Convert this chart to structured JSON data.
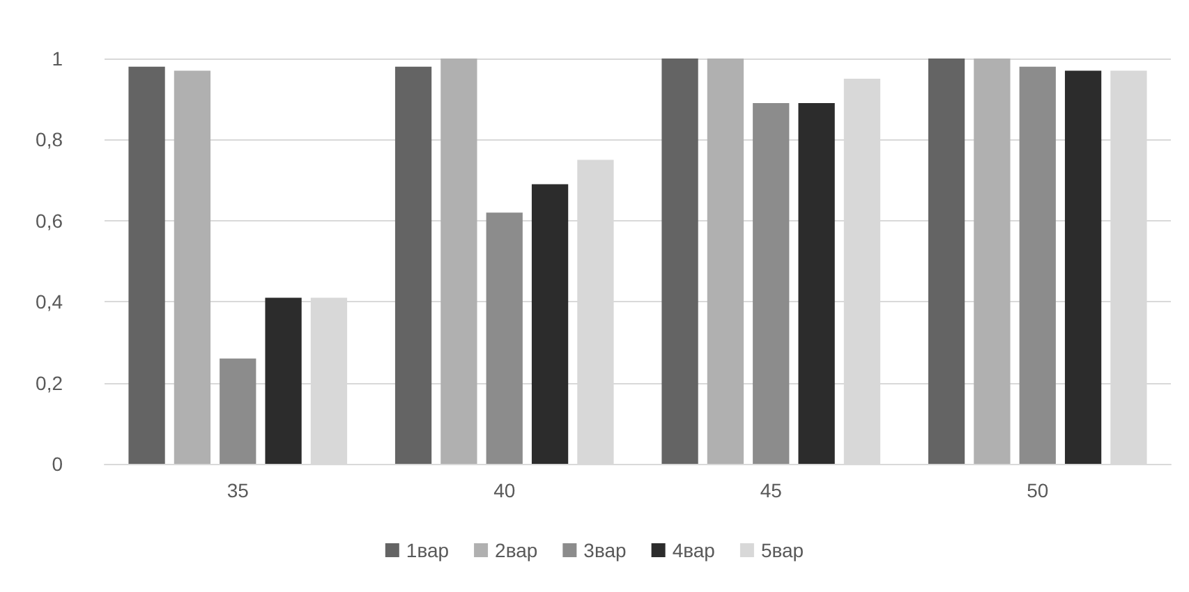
{
  "chart_data": {
    "type": "bar",
    "categories": [
      "35",
      "40",
      "45",
      "50"
    ],
    "series": [
      {
        "name": "1вар",
        "color": "#646464",
        "values": [
          0.98,
          0.98,
          1.0,
          1.0
        ]
      },
      {
        "name": "2вар",
        "color": "#b0b0b0",
        "values": [
          0.97,
          1.0,
          1.0,
          1.0
        ]
      },
      {
        "name": "3вар",
        "color": "#8c8c8c",
        "values": [
          0.26,
          0.62,
          0.89,
          0.98
        ]
      },
      {
        "name": "4вар",
        "color": "#2c2c2c",
        "values": [
          0.41,
          0.69,
          0.89,
          0.97
        ]
      },
      {
        "name": "5вар",
        "color": "#d8d8d8",
        "values": [
          0.41,
          0.75,
          0.95,
          0.97
        ]
      }
    ],
    "ylim": [
      0,
      1
    ],
    "yticks": [
      0,
      {
        "value": 0.2,
        "label": "0,2"
      },
      {
        "value": 0.4,
        "label": "0,4"
      },
      {
        "value": 0.6,
        "label": "0,6"
      },
      {
        "value": 0.8,
        "label": "0,8"
      },
      1
    ],
    "grid": "y",
    "legend": "bottom"
  }
}
